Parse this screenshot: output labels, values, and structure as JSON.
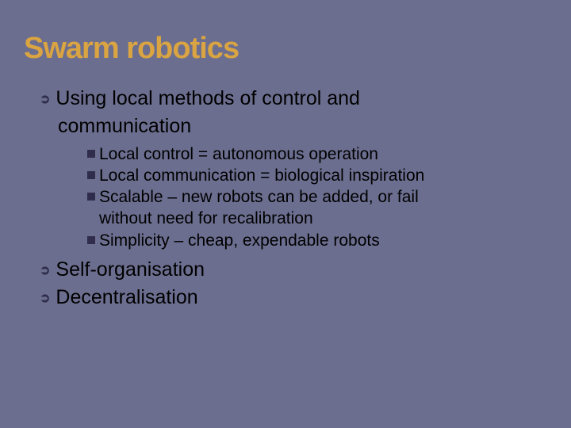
{
  "slide": {
    "background_color": "#6b6e8f",
    "title": "Swarm robotics",
    "title_color": "#d9a441",
    "title_fontsize": 38,
    "bullet_arrow_color": "#302d4c",
    "bullet_square_color": "#302d4c",
    "text_color": "#000000",
    "level1_fontsize": 25,
    "level2_fontsize": 21,
    "bullets_level1": [
      {
        "text_line1": "Using local methods of control and",
        "text_line2": "communication",
        "sub": [
          {
            "line1": "Local control = autonomous operation"
          },
          {
            "line1": "Local communication = biological inspiration"
          },
          {
            "line1": "Scalable – new robots can be added, or fail",
            "line2": "without need for recalibration"
          },
          {
            "line1": "Simplicity – cheap, expendable robots"
          }
        ]
      },
      {
        "text_line1": "Self-organisation"
      },
      {
        "text_line1": "Decentralisation"
      }
    ]
  }
}
